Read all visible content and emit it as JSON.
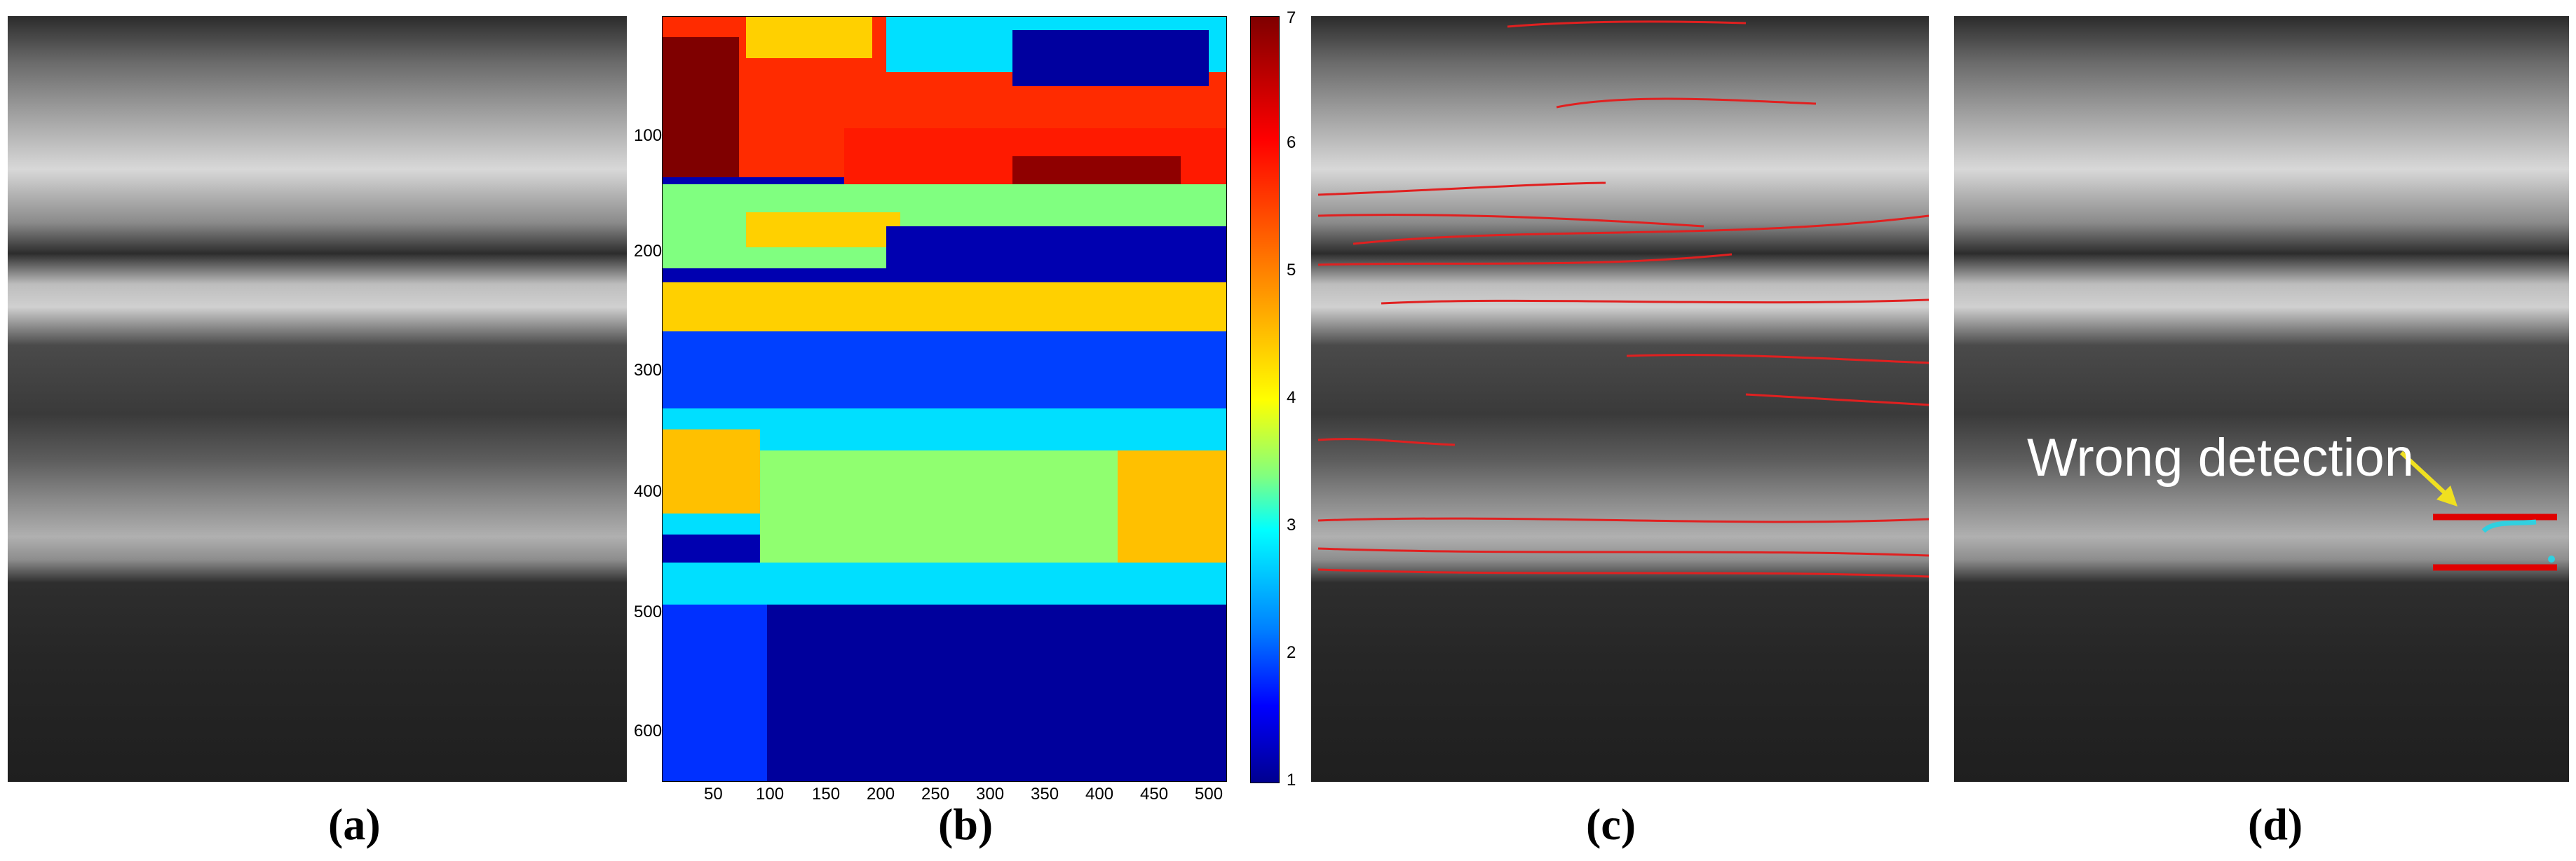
{
  "panels": {
    "a": {
      "caption": "(a)"
    },
    "b": {
      "caption": "(b)",
      "x_ticks": [
        "50",
        "100",
        "150",
        "200",
        "250",
        "300",
        "350",
        "400",
        "450",
        "500"
      ],
      "y_ticks": [
        "100",
        "200",
        "300",
        "400",
        "500",
        "600"
      ],
      "colorbar_ticks": [
        "1",
        "2",
        "3",
        "4",
        "5",
        "6",
        "7"
      ],
      "colormap": "jet"
    },
    "c": {
      "caption": "(c)",
      "line_color": "#e02020"
    },
    "d": {
      "caption": "(d)",
      "annotation": "Wrong detection",
      "arrow_color": "#f0e020",
      "line_color": "#e00000",
      "blob_color": "#30d0e0"
    }
  }
}
